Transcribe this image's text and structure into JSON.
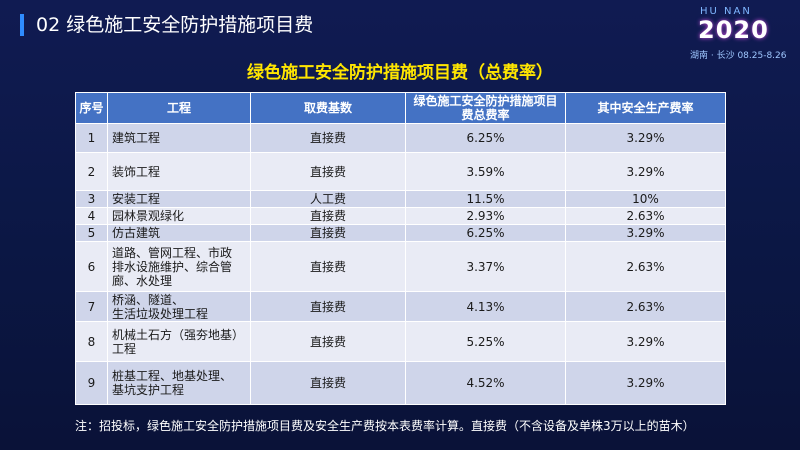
{
  "header": {
    "title": "02 绿色施工安全防护措施项目费",
    "logo_top": "HU NAN",
    "logo_year": "2020",
    "logo_sub": "湖南 · 长沙  08.25-8.26"
  },
  "title": "绿色施工安全防护措施项目费（总费率）",
  "table": {
    "columns": [
      [
        "序号"
      ],
      [
        "工程"
      ],
      [
        "取费基数"
      ],
      [
        "绿色施工安全防护措施项目",
        "费总费率"
      ],
      [
        "其中安全生产费率"
      ]
    ],
    "rows": [
      [
        "1",
        [
          "建筑工程"
        ],
        "直接费",
        "6.25%",
        "3.29%"
      ],
      [
        "2",
        [
          "装饰工程"
        ],
        "直接费",
        "3.59%",
        "3.29%"
      ],
      [
        "3",
        [
          "安装工程"
        ],
        "人工费",
        "11.5%",
        "10%"
      ],
      [
        "4",
        [
          "园林景观绿化"
        ],
        "直接费",
        "2.93%",
        "2.63%"
      ],
      [
        "5",
        [
          "仿古建筑"
        ],
        "直接费",
        "6.25%",
        "3.29%"
      ],
      [
        "6",
        [
          "道路、管网工程、市政",
          "排水设施维护、综合管",
          "廊、水处理"
        ],
        "直接费",
        "3.37%",
        "2.63%"
      ],
      [
        "7",
        [
          "桥涵、隧道、",
          "生活垃圾处理工程"
        ],
        "直接费",
        "4.13%",
        "2.63%"
      ],
      [
        "8",
        [
          "机械土石方（强夯地基）",
          "工程"
        ],
        "直接费",
        "5.25%",
        "3.29%"
      ],
      [
        "9",
        [
          "桩基工程、地基处理、",
          "基坑支护工程"
        ],
        "直接费",
        "4.52%",
        "3.29%"
      ]
    ]
  },
  "note": "注：招投标，绿色施工安全防护措施项目费及安全生产费按本表费率计算。直接费（不含设备及单株3万以上的苗木）"
}
